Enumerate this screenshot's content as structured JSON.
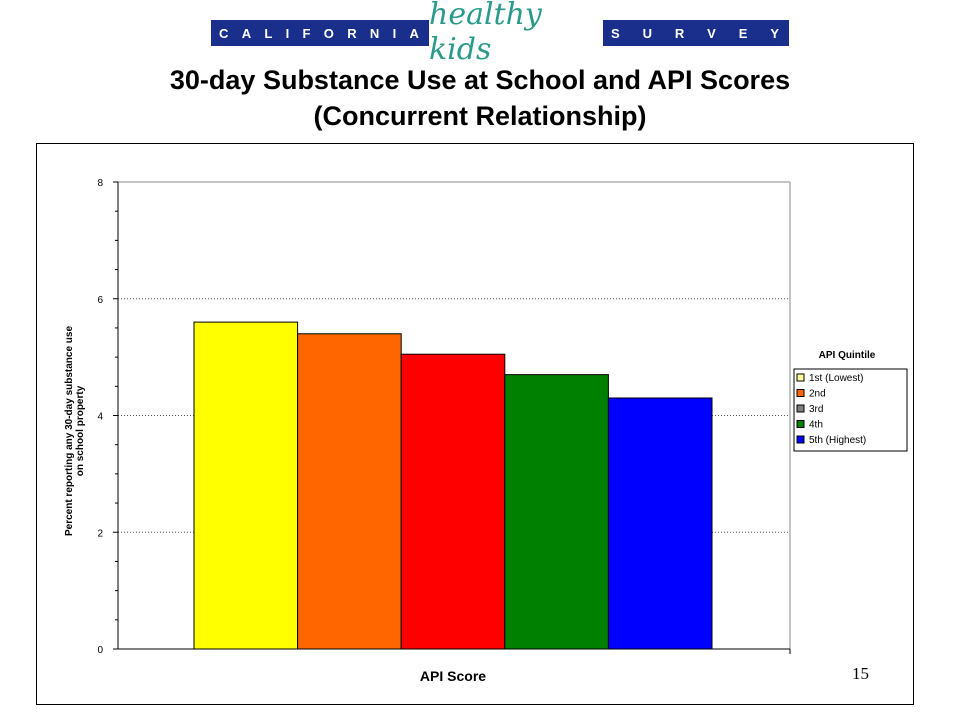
{
  "logo": {
    "left_letters": [
      "C",
      "A",
      "L",
      "I",
      "F",
      "O",
      "R",
      "N",
      "I",
      "A"
    ],
    "middle": "healthy kids",
    "right_letters": [
      "S",
      "U",
      "R",
      "V",
      "E",
      "Y"
    ],
    "bar_color": "#1a2f8c",
    "middle_color": "#2a9a8a"
  },
  "title": {
    "line1": "30-day Substance Use at School and API Scores",
    "line2": "(Concurrent Relationship)"
  },
  "page_number": "15",
  "chart_data": {
    "type": "bar",
    "xlabel": "API Score",
    "ylabel_line1": "Percent reporting any 30-day substance use",
    "ylabel_line2": "on school property",
    "ylim": [
      0,
      8
    ],
    "yticks": [
      "0",
      "2",
      "4",
      "6",
      "8"
    ],
    "grid": true,
    "legend_title": "API Quintile",
    "legend_position": "right",
    "series": [
      {
        "name": "1st (Lowest)",
        "value": 5.6,
        "color": "#ffff00"
      },
      {
        "name": "2nd",
        "value": 5.4,
        "color": "#ff6600"
      },
      {
        "name": "3rd",
        "value": 5.05,
        "color": "#ff0000"
      },
      {
        "name": "4th",
        "value": 4.7,
        "color": "#008000"
      },
      {
        "name": "5th (Highest)",
        "value": 4.3,
        "color": "#0000ff"
      }
    ],
    "legend_swatch_colors": [
      "#ffff99",
      "#ff6600",
      "#808080",
      "#008000",
      "#0000ff"
    ]
  }
}
